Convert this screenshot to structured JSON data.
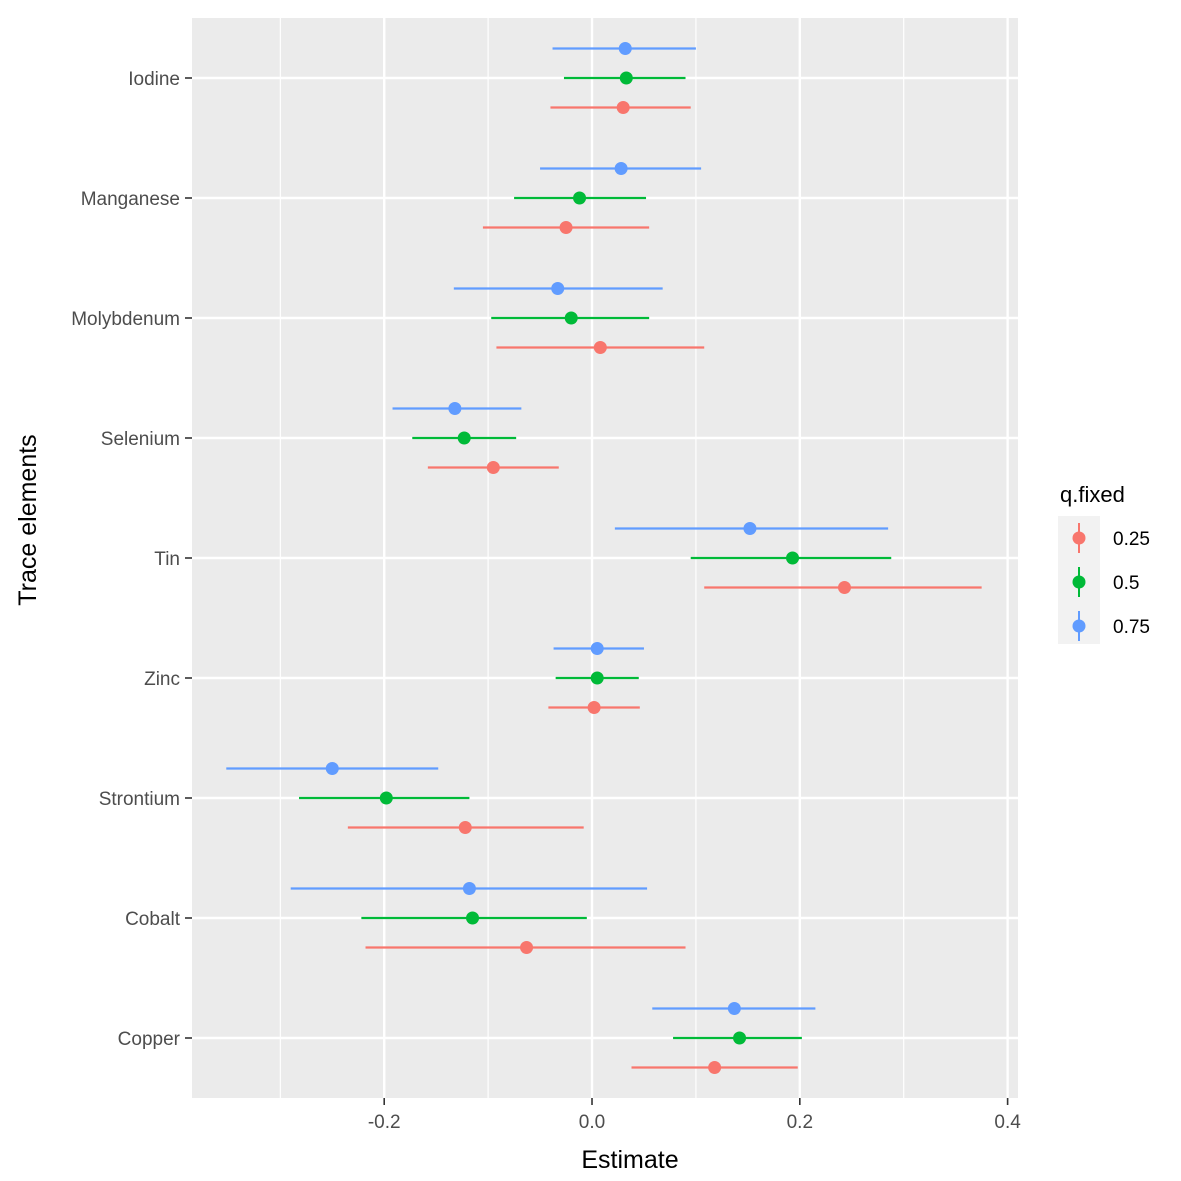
{
  "chart_data": {
    "type": "errorbar-dot",
    "xlabel": "Estimate",
    "ylabel": "Trace elements",
    "xlim": [
      -0.385,
      0.41
    ],
    "xticks": [
      -0.2,
      0.0,
      0.2,
      0.4
    ],
    "xtick_labels": [
      "-0.2",
      "0.0",
      "0.2",
      "0.4"
    ],
    "categories": [
      "Iodine",
      "Manganese",
      "Molybdenum",
      "Selenium",
      "Tin",
      "Zinc",
      "Strontium",
      "Cobalt",
      "Copper"
    ],
    "legend": {
      "title": "q.fixed",
      "position": "right"
    },
    "series": [
      {
        "name": "0.25",
        "color": "#F8766D",
        "estimates": [
          0.03,
          -0.025,
          0.008,
          -0.095,
          0.243,
          0.002,
          -0.122,
          -0.063,
          0.118
        ],
        "lower": [
          -0.04,
          -0.105,
          -0.092,
          -0.158,
          0.108,
          -0.042,
          -0.235,
          -0.218,
          0.038
        ],
        "upper": [
          0.095,
          0.055,
          0.108,
          -0.032,
          0.375,
          0.046,
          -0.008,
          0.09,
          0.198
        ]
      },
      {
        "name": "0.5",
        "color": "#00BA38",
        "estimates": [
          0.033,
          -0.012,
          -0.02,
          -0.123,
          0.193,
          0.005,
          -0.198,
          -0.115,
          0.142
        ],
        "lower": [
          -0.027,
          -0.075,
          -0.097,
          -0.173,
          0.095,
          -0.035,
          -0.282,
          -0.222,
          0.078
        ],
        "upper": [
          0.09,
          0.052,
          0.055,
          -0.073,
          0.288,
          0.045,
          -0.118,
          -0.005,
          0.202
        ]
      },
      {
        "name": "0.75",
        "color": "#619CFF",
        "estimates": [
          0.032,
          0.028,
          -0.033,
          -0.132,
          0.152,
          0.005,
          -0.25,
          -0.118,
          0.137
        ],
        "lower": [
          -0.038,
          -0.05,
          -0.133,
          -0.192,
          0.022,
          -0.037,
          -0.352,
          -0.29,
          0.058
        ],
        "upper": [
          0.1,
          0.105,
          0.068,
          -0.068,
          0.285,
          0.05,
          -0.148,
          0.053,
          0.215
        ]
      }
    ]
  }
}
